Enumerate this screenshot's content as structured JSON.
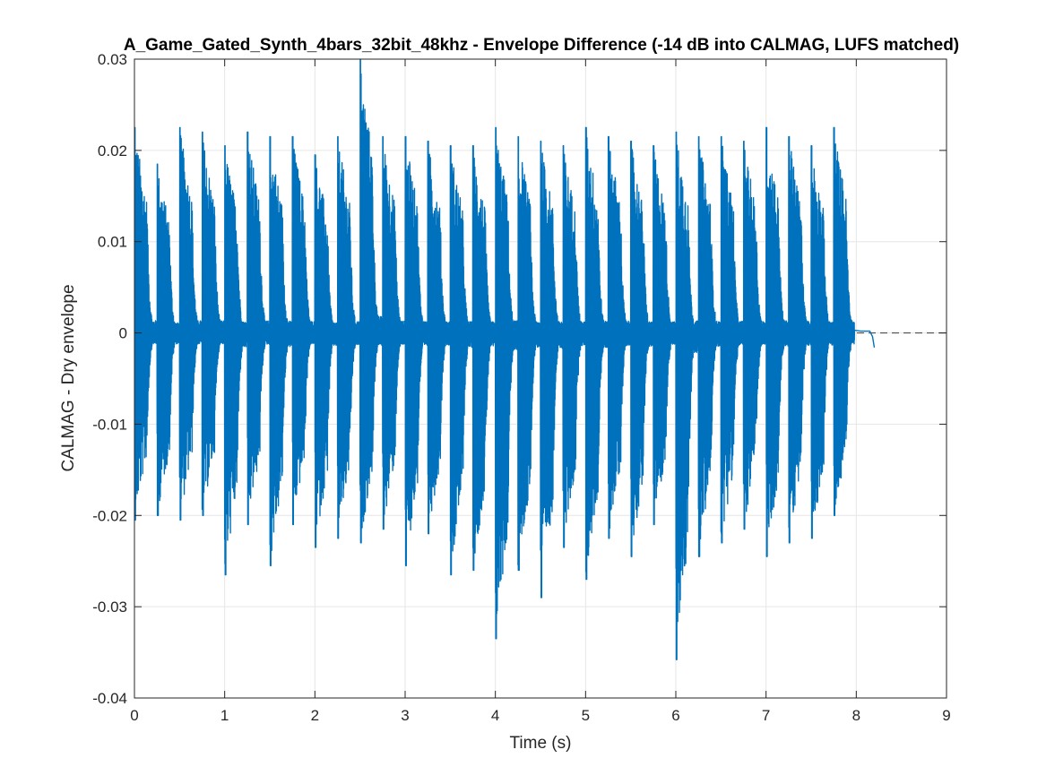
{
  "chart_data": {
    "type": "line",
    "title": "A_Game_Gated_Synth_4bars_32bit_48khz - Envelope Difference (-14 dB into CALMAG, LUFS matched)",
    "xlabel": "Time (s)",
    "ylabel": "CALMAG - Dry envelope",
    "xlim": [
      0,
      9
    ],
    "ylim": [
      -0.04,
      0.03
    ],
    "xticks": [
      0,
      1,
      2,
      3,
      4,
      5,
      6,
      7,
      8,
      9
    ],
    "xtick_labels": [
      "0",
      "1",
      "2",
      "3",
      "4",
      "5",
      "6",
      "7",
      "8",
      "9"
    ],
    "yticks": [
      -0.04,
      -0.03,
      -0.02,
      -0.01,
      0,
      0.01,
      0.02,
      0.03
    ],
    "ytick_labels": [
      "-0.04",
      "-0.03",
      "-0.02",
      "-0.01",
      "0",
      "0.01",
      "0.02",
      "0.03"
    ],
    "grid": true,
    "line_color": "#0072bd",
    "reference_line": {
      "y": 0,
      "style": "dashed",
      "color": "#3a3a3a"
    },
    "series": [
      {
        "note_onsets": [
          0.0,
          0.25,
          0.5,
          0.75,
          1.0,
          1.25,
          1.5,
          1.75,
          2.0,
          2.25,
          2.5,
          2.75,
          3.0,
          3.25,
          3.5,
          3.75,
          4.0,
          4.25,
          4.5,
          4.75,
          5.0,
          5.25,
          5.5,
          5.75,
          6.0,
          6.25,
          6.5,
          6.75,
          7.0,
          7.25,
          7.5,
          7.75
        ],
        "peak_max": [
          0.0225,
          0.0185,
          0.0225,
          0.022,
          0.0205,
          0.022,
          0.0215,
          0.0215,
          0.0195,
          0.0215,
          0.03,
          0.0215,
          0.0215,
          0.021,
          0.0205,
          0.0205,
          0.0225,
          0.0215,
          0.021,
          0.0205,
          0.0225,
          0.0215,
          0.021,
          0.0205,
          0.022,
          0.0215,
          0.0215,
          0.021,
          0.0225,
          0.0215,
          0.0205,
          0.0225
        ],
        "peak_min": [
          -0.0205,
          -0.02,
          -0.0205,
          -0.02,
          -0.0265,
          -0.021,
          -0.0255,
          -0.021,
          -0.0235,
          -0.0225,
          -0.023,
          -0.0215,
          -0.0255,
          -0.022,
          -0.0265,
          -0.026,
          -0.0335,
          -0.026,
          -0.029,
          -0.0235,
          -0.027,
          -0.0225,
          -0.0245,
          -0.021,
          -0.0358,
          -0.0245,
          -0.023,
          -0.0215,
          -0.0245,
          -0.023,
          -0.0225,
          -0.02
        ],
        "tail": {
          "x": [
            7.98,
            8.05,
            8.15,
            8.18,
            8.2
          ],
          "y": [
            0.0003,
            0.0002,
            0.0002,
            -0.0004,
            -0.0016
          ]
        }
      }
    ]
  }
}
